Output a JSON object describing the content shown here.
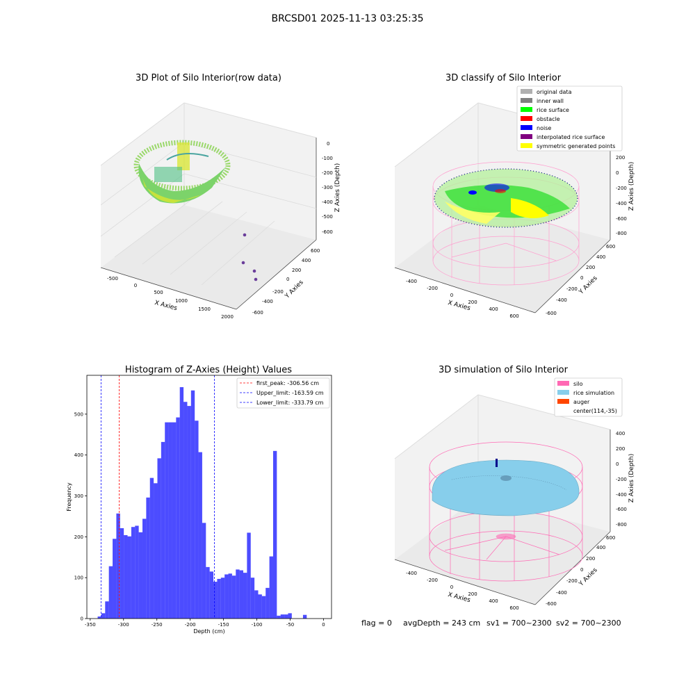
{
  "figure": {
    "suptitle": "BRCSD01 2025-11-13 03:25:35",
    "footer": {
      "flag": "flag = 0",
      "avg_depth": "avgDepth = 243 cm",
      "sv1": "sv1 = 700~2300",
      "sv2": "sv2 = 700~2300"
    }
  },
  "panels": {
    "raw": {
      "title": "3D Plot of Silo Interior(row data)",
      "xlabel": "X Axies",
      "ylabel": "Y Axies",
      "zlabel": "Z Axies (Depth)",
      "xticks": [
        "-500",
        "0",
        "500",
        "1000",
        "1500",
        "2000"
      ],
      "yticks": [
        "-600",
        "-400",
        "-200",
        "0",
        "200",
        "400",
        "600"
      ],
      "zticks": [
        "0",
        "-100",
        "-200",
        "-300",
        "-400",
        "-500",
        "-600"
      ]
    },
    "classify": {
      "title": "3D classify of Silo Interior",
      "xlabel": "X Axies",
      "ylabel": "Y Axies",
      "zlabel": "Z Axies (Depth)",
      "xticks": [
        "-400",
        "-200",
        "0",
        "200",
        "400",
        "600"
      ],
      "yticks": [
        "-600",
        "-400",
        "-200",
        "0",
        "200",
        "400",
        "600"
      ],
      "zticks": [
        "200",
        "0",
        "-200",
        "-400",
        "-600",
        "-800"
      ],
      "legend": [
        {
          "label": "original data",
          "color": "#b0b0b0"
        },
        {
          "label": "inner wall",
          "color": "#808080"
        },
        {
          "label": "rice surface",
          "color": "#00ff00"
        },
        {
          "label": "obstacle",
          "color": "#ff0000"
        },
        {
          "label": "noise",
          "color": "#0000ff"
        },
        {
          "label": "interpolated rice surface",
          "color": "#800080"
        },
        {
          "label": "symmetric generated points",
          "color": "#ffff00"
        }
      ]
    },
    "simulation": {
      "title": "3D simulation of Silo Interior",
      "xlabel": "X Axies",
      "ylabel": "Y Axies",
      "zlabel": "Z Axies (Depth)",
      "xticks": [
        "-400",
        "-200",
        "0",
        "200",
        "400",
        "600"
      ],
      "yticks": [
        "-600",
        "-400",
        "-200",
        "0",
        "200",
        "400",
        "600"
      ],
      "zticks": [
        "400",
        "200",
        "0",
        "-200",
        "-400",
        "-600",
        "-800"
      ],
      "legend": [
        {
          "label": "silo",
          "color": "#ff69b4"
        },
        {
          "label": "rice simulation",
          "color": "#87ceeb"
        },
        {
          "label": "auger",
          "color": "#ff4500"
        },
        {
          "label": "center(114,-35)",
          "color": ""
        }
      ]
    }
  },
  "chart_data": {
    "type": "bar",
    "title": "Histogram of Z-Axies (Height) Values",
    "xlabel": "Depth (cm)",
    "ylabel": "Frequency",
    "xlim": [
      -355,
      12
    ],
    "ylim": [
      0,
      595
    ],
    "xticks": [
      -350,
      -300,
      -250,
      -200,
      -150,
      -100,
      -50,
      0
    ],
    "yticks": [
      0,
      100,
      200,
      300,
      400,
      500
    ],
    "bar_color": "#0000ff",
    "bin_width": 5.6,
    "bins": [
      [
        -338.8,
        5
      ],
      [
        -333.2,
        13
      ],
      [
        -327.6,
        42
      ],
      [
        -322.0,
        128
      ],
      [
        -316.4,
        195
      ],
      [
        -310.8,
        257
      ],
      [
        -305.2,
        221
      ],
      [
        -299.6,
        204
      ],
      [
        -294.0,
        201
      ],
      [
        -288.4,
        224
      ],
      [
        -282.8,
        227
      ],
      [
        -277.2,
        211
      ],
      [
        -271.6,
        244
      ],
      [
        -266.0,
        296
      ],
      [
        -260.4,
        344
      ],
      [
        -254.8,
        331
      ],
      [
        -249.2,
        392
      ],
      [
        -243.6,
        432
      ],
      [
        -238.0,
        480
      ],
      [
        -232.4,
        480
      ],
      [
        -226.8,
        480
      ],
      [
        -221.2,
        492
      ],
      [
        -215.6,
        566
      ],
      [
        -210.0,
        530
      ],
      [
        -204.4,
        520
      ],
      [
        -198.8,
        558
      ],
      [
        -193.2,
        484
      ],
      [
        -187.6,
        407
      ],
      [
        -182.0,
        234
      ],
      [
        -176.4,
        126
      ],
      [
        -170.8,
        115
      ],
      [
        -165.2,
        90
      ],
      [
        -159.6,
        97
      ],
      [
        -154.0,
        100
      ],
      [
        -148.4,
        108
      ],
      [
        -142.8,
        110
      ],
      [
        -137.2,
        105
      ],
      [
        -131.6,
        120
      ],
      [
        -126.0,
        118
      ],
      [
        -120.4,
        112
      ],
      [
        -114.8,
        210
      ],
      [
        -109.2,
        100
      ],
      [
        -103.6,
        69
      ],
      [
        -98.0,
        59
      ],
      [
        -92.4,
        55
      ],
      [
        -86.8,
        75
      ],
      [
        -81.2,
        152
      ],
      [
        -75.6,
        410
      ],
      [
        -70.0,
        7
      ],
      [
        -64.4,
        10
      ],
      [
        -58.8,
        10
      ],
      [
        -53.2,
        13
      ],
      [
        -47.6,
        0
      ],
      [
        -42.0,
        0
      ],
      [
        -36.4,
        0
      ],
      [
        -30.8,
        9
      ]
    ],
    "vlines": [
      {
        "label": "first_peak: -306.56 cm",
        "x": -306.56,
        "color": "#ff0000"
      },
      {
        "label": "Upper_limit: -163.59 cm",
        "x": -163.59,
        "color": "#0000ff"
      },
      {
        "label": "Lower_limit: -333.79 cm",
        "x": -333.79,
        "color": "#0000ff"
      }
    ],
    "legend_position": "upper-right"
  }
}
